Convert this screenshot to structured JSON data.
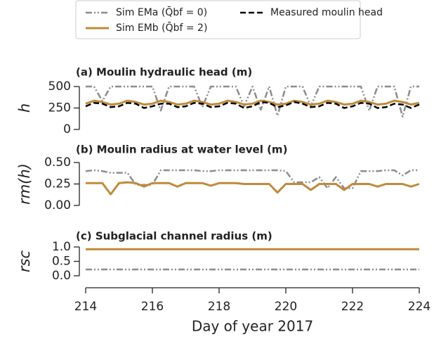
{
  "chart_data": [
    {
      "type": "line",
      "title": "(a) Moulin hydraulic head (m)",
      "ylabel": "h",
      "legend": "top",
      "xlim": [
        214,
        224
      ],
      "ylim": [
        0,
        500
      ],
      "yticks": [
        0,
        250,
        500
      ],
      "x": [
        214,
        214.25,
        214.5,
        214.75,
        215,
        215.25,
        215.5,
        215.75,
        216,
        216.25,
        216.5,
        216.75,
        217,
        217.25,
        217.5,
        217.75,
        218,
        218.25,
        218.5,
        218.75,
        219,
        219.25,
        219.5,
        219.75,
        220,
        220.25,
        220.5,
        220.75,
        221,
        221.25,
        221.5,
        221.75,
        222,
        222.25,
        222.5,
        222.75,
        223,
        223.25,
        223.5,
        223.75,
        224
      ],
      "series": [
        {
          "name": "Sim EMa (Q̄bf = 0)",
          "color": "#8c8c8c",
          "linestyle": "dashdotdot",
          "values": [
            500,
            500,
            330,
            500,
            500,
            500,
            500,
            500,
            500,
            220,
            500,
            500,
            500,
            500,
            260,
            500,
            500,
            500,
            500,
            270,
            500,
            230,
            500,
            160,
            500,
            500,
            500,
            270,
            500,
            500,
            500,
            500,
            500,
            500,
            220,
            500,
            500,
            500,
            150,
            500,
            500
          ]
        },
        {
          "name": "Sim EMb (Q̄bf = 2)",
          "color": "#c08a3a",
          "linestyle": "solid",
          "values": [
            300,
            335,
            320,
            290,
            300,
            335,
            320,
            290,
            300,
            335,
            320,
            290,
            300,
            335,
            320,
            290,
            300,
            335,
            320,
            290,
            300,
            335,
            320,
            290,
            300,
            335,
            320,
            290,
            300,
            335,
            320,
            290,
            300,
            335,
            320,
            290,
            300,
            335,
            320,
            290,
            310
          ]
        },
        {
          "name": "Measured moulin head",
          "color": "#000000",
          "linestyle": "dashed",
          "values": [
            270,
            310,
            300,
            260,
            270,
            310,
            300,
            250,
            270,
            300,
            300,
            260,
            270,
            310,
            300,
            260,
            270,
            310,
            300,
            250,
            270,
            320,
            310,
            260,
            280,
            320,
            300,
            260,
            270,
            310,
            300,
            250,
            270,
            310,
            300,
            250,
            260,
            300,
            290,
            250,
            290
          ]
        }
      ]
    },
    {
      "type": "line",
      "title": "(b) Moulin radius at water level (m)",
      "ylabel": "rm(h)",
      "xlim": [
        214,
        224
      ],
      "ylim": [
        0,
        0.5
      ],
      "yticks": [
        {
          "value": 0,
          "label": "0.00"
        },
        {
          "value": 0.25,
          "label": "0.25"
        },
        {
          "value": 0.5,
          "label": "0.50"
        }
      ],
      "x": [
        214,
        214.25,
        214.5,
        214.75,
        215,
        215.25,
        215.5,
        215.75,
        216,
        216.25,
        216.5,
        216.75,
        217,
        217.25,
        217.5,
        217.75,
        218,
        218.25,
        218.5,
        218.75,
        219,
        219.25,
        219.5,
        219.75,
        220,
        220.25,
        220.5,
        220.75,
        221,
        221.25,
        221.5,
        221.75,
        222,
        222.25,
        222.5,
        222.75,
        223,
        223.25,
        223.5,
        223.75,
        224
      ],
      "series": [
        {
          "color": "#8c8c8c",
          "linestyle": "dashdotdot",
          "values": [
            0.4,
            0.41,
            0.4,
            0.38,
            0.38,
            0.38,
            0.24,
            0.24,
            0.24,
            0.41,
            0.41,
            0.41,
            0.41,
            0.41,
            0.4,
            0.4,
            0.41,
            0.41,
            0.41,
            0.41,
            0.41,
            0.41,
            0.41,
            0.41,
            0.4,
            0.27,
            0.27,
            0.27,
            0.33,
            0.2,
            0.33,
            0.2,
            0.2,
            0.4,
            0.4,
            0.4,
            0.41,
            0.41,
            0.35,
            0.41,
            0.41
          ]
        },
        {
          "color": "#c08a3a",
          "linestyle": "solid",
          "values": [
            0.26,
            0.26,
            0.26,
            0.13,
            0.26,
            0.27,
            0.26,
            0.22,
            0.26,
            0.26,
            0.26,
            0.22,
            0.26,
            0.26,
            0.26,
            0.23,
            0.26,
            0.26,
            0.26,
            0.25,
            0.25,
            0.25,
            0.25,
            0.15,
            0.25,
            0.25,
            0.25,
            0.18,
            0.25,
            0.25,
            0.25,
            0.18,
            0.25,
            0.25,
            0.25,
            0.22,
            0.25,
            0.25,
            0.25,
            0.22,
            0.25
          ]
        }
      ]
    },
    {
      "type": "line",
      "title": "(c) Subglacial channel radius (m)",
      "ylabel": "rsc",
      "xlabel": "Day of year 2017",
      "xlim": [
        214,
        224
      ],
      "xticks": [
        214,
        216,
        218,
        220,
        222,
        224
      ],
      "ylim": [
        0,
        1
      ],
      "yticks": [
        {
          "value": 0,
          "label": "0.0"
        },
        {
          "value": 0.5,
          "label": "0.5"
        },
        {
          "value": 1,
          "label": "1.0"
        }
      ],
      "x": [
        214,
        219,
        224
      ],
      "series": [
        {
          "color": "#8c8c8c",
          "linestyle": "dashdotdot",
          "values": [
            0.22,
            0.22,
            0.22
          ]
        },
        {
          "color": "#c08a3a",
          "linestyle": "solid",
          "values": [
            0.92,
            0.92,
            0.92
          ]
        }
      ]
    }
  ]
}
